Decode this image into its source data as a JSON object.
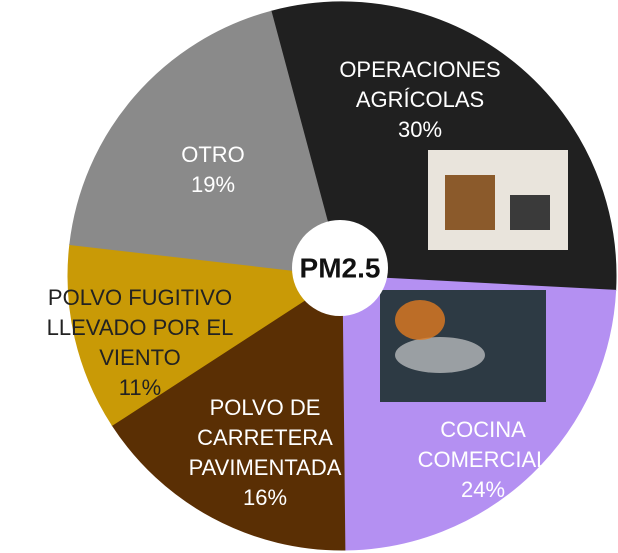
{
  "chart_data": {
    "type": "pie",
    "title": "PM2.5",
    "categories": [
      "OPERACIONES AGRÍCOLAS",
      "COCINA COMERCIAL",
      "POLVO DE CARRETERA PAVIMENTADA",
      "POLVO FUGITIVO LLEVADO POR EL VIENTO",
      "OTRO"
    ],
    "values": [
      30,
      24,
      16,
      11,
      19
    ],
    "value_labels": [
      "30%",
      "24%",
      "16%",
      "11%",
      "19%"
    ],
    "colors": [
      "#202020",
      "#b490f2",
      "#5a2f04",
      "#c99a06",
      "#8a8a8a"
    ]
  }
}
